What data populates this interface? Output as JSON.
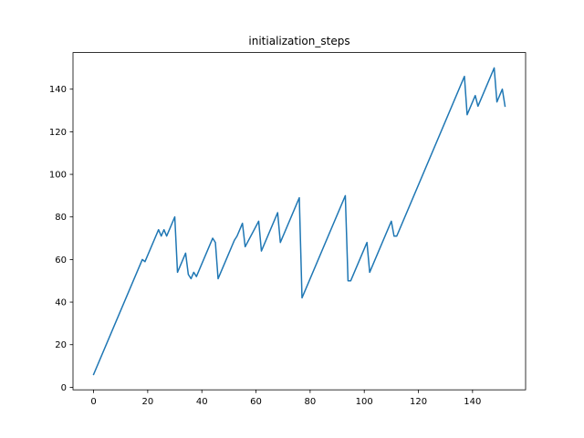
{
  "chart_data": {
    "type": "line",
    "title": "initialization_steps",
    "xlabel": "",
    "ylabel": "",
    "xlim": [
      -7.6,
      159.6
    ],
    "ylim": [
      -1.2,
      157.2
    ],
    "xticks": [
      0,
      20,
      40,
      60,
      80,
      100,
      120,
      140
    ],
    "yticks": [
      0,
      20,
      40,
      60,
      80,
      100,
      120,
      140
    ],
    "grid": false,
    "series": [
      {
        "color": "#1f77b4",
        "x": [
          0,
          18,
          19,
          24,
          25,
          26,
          27,
          30,
          31,
          34,
          35,
          36,
          37,
          38,
          44,
          45,
          46,
          52,
          53,
          55,
          56,
          61,
          62,
          68,
          69,
          76,
          77,
          93,
          94,
          95,
          101,
          102,
          110,
          111,
          112,
          137,
          138,
          141,
          142,
          148,
          149,
          151,
          152
        ],
        "y": [
          6,
          60,
          59,
          74,
          71,
          74,
          71,
          80,
          54,
          63,
          53,
          51,
          54,
          52,
          70,
          68,
          51,
          69,
          71,
          77,
          66,
          78,
          64,
          82,
          68,
          89,
          42,
          90,
          50,
          50,
          68,
          54,
          78,
          71,
          71,
          146,
          128,
          137,
          132,
          150,
          134,
          140,
          132
        ]
      }
    ]
  }
}
